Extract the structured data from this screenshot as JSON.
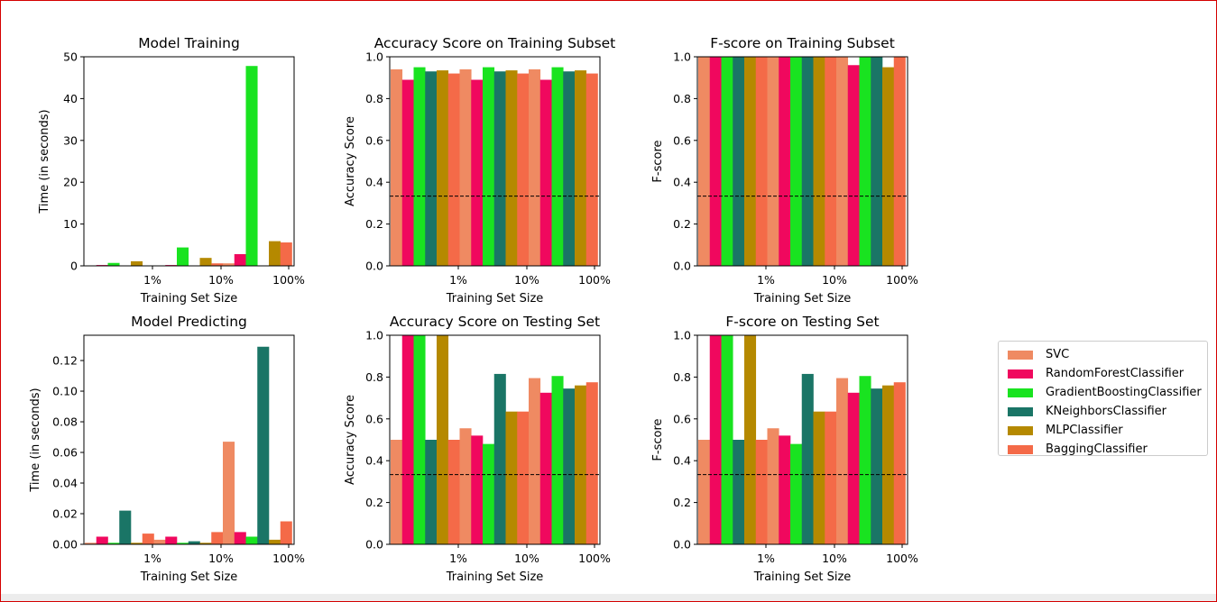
{
  "chart_data": [
    {
      "type": "bar",
      "title": "Model Training",
      "xlabel": "Training Set Size",
      "ylabel": "Time (in seconds)",
      "ylim": [
        0,
        50
      ],
      "yticks": [
        "0",
        "10",
        "20",
        "30",
        "40",
        "50"
      ],
      "categories": [
        "1%",
        "10%",
        "100%"
      ],
      "baseline": null,
      "values": [
        [
          0.05,
          0.2,
          0.7,
          0.05,
          1.1,
          0.1
        ],
        [
          0.05,
          0.2,
          4.4,
          0.05,
          1.9,
          0.6
        ],
        [
          0.6,
          2.8,
          47.8,
          0.1,
          5.9,
          5.6
        ]
      ]
    },
    {
      "type": "bar",
      "title": "Accuracy Score on Training Subset",
      "xlabel": "Training Set Size",
      "ylabel": "Accuracy Score",
      "ylim": [
        0,
        1
      ],
      "yticks": [
        "0.0",
        "0.2",
        "0.4",
        "0.6",
        "0.8",
        "1.0"
      ],
      "categories": [
        "1%",
        "10%",
        "100%"
      ],
      "baseline": 0.3333,
      "values": [
        [
          0.94,
          0.89,
          0.95,
          0.93,
          0.935,
          0.92
        ],
        [
          0.94,
          0.89,
          0.95,
          0.93,
          0.935,
          0.92
        ],
        [
          0.94,
          0.89,
          0.95,
          0.93,
          0.935,
          0.92
        ]
      ]
    },
    {
      "type": "bar",
      "title": "F-score on Training Subset",
      "xlabel": "Training Set Size",
      "ylabel": "F-score",
      "ylim": [
        0,
        1
      ],
      "yticks": [
        "0.0",
        "0.2",
        "0.4",
        "0.6",
        "0.8",
        "1.0"
      ],
      "categories": [
        "1%",
        "10%",
        "100%"
      ],
      "baseline": 0.3333,
      "values": [
        [
          1.0,
          1.0,
          1.0,
          1.0,
          1.0,
          1.0
        ],
        [
          1.0,
          1.0,
          1.0,
          1.0,
          1.0,
          1.0
        ],
        [
          1.0,
          0.96,
          1.0,
          1.0,
          0.95,
          1.0
        ]
      ]
    },
    {
      "type": "bar",
      "title": "Model Predicting",
      "xlabel": "Training Set Size",
      "ylabel": "Time (in seconds)",
      "ylim": [
        0,
        0.1365
      ],
      "yticks": [
        "0.00",
        "0.02",
        "0.04",
        "0.06",
        "0.08",
        "0.10",
        "0.12"
      ],
      "categories": [
        "1%",
        "10%",
        "100%"
      ],
      "baseline": null,
      "values": [
        [
          0.001,
          0.005,
          0.001,
          0.022,
          0.001,
          0.007
        ],
        [
          0.003,
          0.005,
          0.001,
          0.002,
          0.001,
          0.008
        ],
        [
          0.067,
          0.008,
          0.005,
          0.129,
          0.003,
          0.015
        ]
      ]
    },
    {
      "type": "bar",
      "title": "Accuracy Score on Testing Set",
      "xlabel": "Training Set Size",
      "ylabel": "Accuracy Score",
      "ylim": [
        0,
        1
      ],
      "yticks": [
        "0.0",
        "0.2",
        "0.4",
        "0.6",
        "0.8",
        "1.0"
      ],
      "categories": [
        "1%",
        "10%",
        "100%"
      ],
      "baseline": 0.3333,
      "values": [
        [
          0.5,
          1.0,
          1.0,
          0.5,
          1.0,
          0.5
        ],
        [
          0.555,
          0.52,
          0.48,
          0.815,
          0.635,
          0.635
        ],
        [
          0.795,
          0.725,
          0.805,
          0.745,
          0.76,
          0.775
        ]
      ]
    },
    {
      "type": "bar",
      "title": "F-score on Testing Set",
      "xlabel": "Training Set Size",
      "ylabel": "F-score",
      "ylim": [
        0,
        1
      ],
      "yticks": [
        "0.0",
        "0.2",
        "0.4",
        "0.6",
        "0.8",
        "1.0"
      ],
      "categories": [
        "1%",
        "10%",
        "100%"
      ],
      "baseline": 0.3333,
      "values": [
        [
          0.5,
          1.0,
          1.0,
          0.5,
          1.0,
          0.5
        ],
        [
          0.555,
          0.52,
          0.48,
          0.815,
          0.635,
          0.635
        ],
        [
          0.795,
          0.725,
          0.805,
          0.745,
          0.76,
          0.775
        ]
      ]
    }
  ],
  "series": [
    {
      "name": "SVC",
      "color": "#ef8a62"
    },
    {
      "name": "RandomForestClassifier",
      "color": "#f0085e"
    },
    {
      "name": "GradientBoostingClassifier",
      "color": "#19e320"
    },
    {
      "name": "KNeighborsClassifier",
      "color": "#1a7566"
    },
    {
      "name": "MLPClassifier",
      "color": "#b58900"
    },
    {
      "name": "BaggingClassifier",
      "color": "#f46a48"
    }
  ]
}
